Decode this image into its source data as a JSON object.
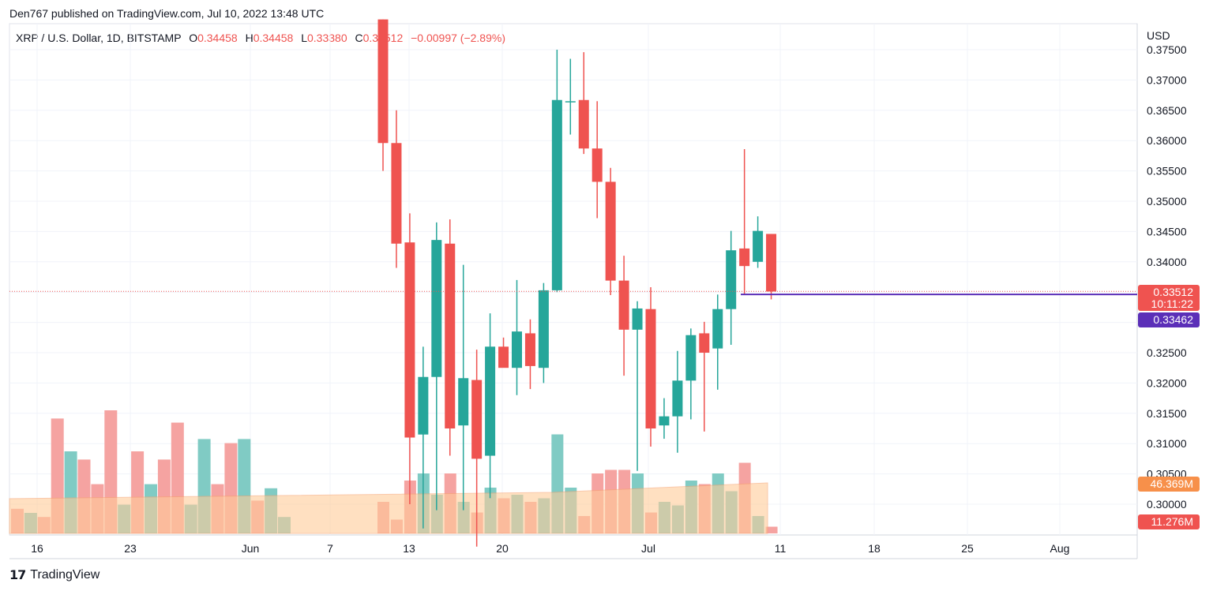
{
  "header": {
    "attribution": "Den767 published on TradingView.com, Jul 10, 2022 13:48 UTC"
  },
  "legend": {
    "symbol": "XRP / U.S. Dollar, 1D, BITSTAMP",
    "o_label": "O",
    "o_value": "0.34458",
    "h_label": "H",
    "h_value": "0.34458",
    "l_label": "L",
    "l_value": "0.33380",
    "c_label": "C",
    "c_value": "0.33512",
    "change": "−0.00997 (−2.89%)"
  },
  "price_axis": {
    "currency": "USD",
    "ticks": [
      "0.37500",
      "0.37000",
      "0.36500",
      "0.36000",
      "0.35500",
      "0.35000",
      "0.34500",
      "0.34000",
      "0.32500",
      "0.32000",
      "0.31500",
      "0.31000",
      "0.30500",
      "0.30000"
    ]
  },
  "badges": {
    "last_price": "0.33512",
    "countdown": "10:11:22",
    "line_price": "0.33462",
    "volume_ma": "46.369M",
    "volume": "11.276M"
  },
  "time_axis": {
    "labels": [
      "16",
      "23",
      "Jun",
      "7",
      "13",
      "20",
      "Jul",
      "11",
      "18",
      "25",
      "Aug"
    ]
  },
  "footer": {
    "logo": "TradingView"
  },
  "colors": {
    "up": "#26a69a",
    "down": "#ef5350",
    "volume_ma_fill": "#ffcc99",
    "line": "#5b2fb8",
    "grid": "#f0f3fa"
  },
  "chart_data": {
    "type": "candlestick",
    "title": "XRP / U.S. Dollar, 1D, BITSTAMP",
    "ylabel": "USD",
    "ylim": [
      0.2975,
      0.378
    ],
    "horizontal_line": 0.33462,
    "last_price": 0.33512,
    "candles": [
      {
        "o": 0.38,
        "h": 0.38,
        "l": 0.355,
        "c": 0.3596
      },
      {
        "o": 0.3596,
        "h": 0.365,
        "l": 0.339,
        "c": 0.343
      },
      {
        "o": 0.3432,
        "h": 0.348,
        "l": 0.3,
        "c": 0.311
      },
      {
        "o": 0.3115,
        "h": 0.326,
        "l": 0.296,
        "c": 0.321
      },
      {
        "o": 0.321,
        "h": 0.3465,
        "l": 0.299,
        "c": 0.3436
      },
      {
        "o": 0.343,
        "h": 0.347,
        "l": 0.308,
        "c": 0.3125
      },
      {
        "o": 0.313,
        "h": 0.3395,
        "l": 0.299,
        "c": 0.3208
      },
      {
        "o": 0.3205,
        "h": 0.3255,
        "l": 0.293,
        "c": 0.3075
      },
      {
        "o": 0.308,
        "h": 0.3315,
        "l": 0.301,
        "c": 0.326
      },
      {
        "o": 0.326,
        "h": 0.3275,
        "l": 0.323,
        "c": 0.3225
      },
      {
        "o": 0.3225,
        "h": 0.337,
        "l": 0.318,
        "c": 0.3285
      },
      {
        "o": 0.3282,
        "h": 0.3305,
        "l": 0.319,
        "c": 0.3228
      },
      {
        "o": 0.3225,
        "h": 0.3365,
        "l": 0.32,
        "c": 0.3353
      },
      {
        "o": 0.3353,
        "h": 0.375,
        "l": 0.335,
        "c": 0.3667
      },
      {
        "o": 0.3665,
        "h": 0.3735,
        "l": 0.361,
        "c": 0.3665
      },
      {
        "o": 0.3667,
        "h": 0.3746,
        "l": 0.3578,
        "c": 0.3587
      },
      {
        "o": 0.3587,
        "h": 0.3665,
        "l": 0.3472,
        "c": 0.3532
      },
      {
        "o": 0.3532,
        "h": 0.3555,
        "l": 0.3345,
        "c": 0.3369
      },
      {
        "o": 0.3369,
        "h": 0.341,
        "l": 0.3212,
        "c": 0.3288
      },
      {
        "o": 0.3288,
        "h": 0.3335,
        "l": 0.3055,
        "c": 0.3323
      },
      {
        "o": 0.3322,
        "h": 0.3358,
        "l": 0.3095,
        "c": 0.3125
      },
      {
        "o": 0.313,
        "h": 0.3175,
        "l": 0.3108,
        "c": 0.3145
      },
      {
        "o": 0.3145,
        "h": 0.3253,
        "l": 0.3085,
        "c": 0.3204
      },
      {
        "o": 0.3204,
        "h": 0.329,
        "l": 0.314,
        "c": 0.3279
      },
      {
        "o": 0.3282,
        "h": 0.3301,
        "l": 0.312,
        "c": 0.325
      },
      {
        "o": 0.3257,
        "h": 0.3346,
        "l": 0.3189,
        "c": 0.3322
      },
      {
        "o": 0.3322,
        "h": 0.3451,
        "l": 0.3263,
        "c": 0.3419
      },
      {
        "o": 0.3422,
        "h": 0.3586,
        "l": 0.3347,
        "c": 0.3393
      },
      {
        "o": 0.34,
        "h": 0.3475,
        "l": 0.339,
        "c": 0.3451
      },
      {
        "o": 0.3446,
        "h": 0.3446,
        "l": 0.3338,
        "c": 0.3351
      }
    ],
    "volume_millions": [
      {
        "v": 6,
        "dir": "down"
      },
      {
        "v": 5,
        "dir": "up"
      },
      {
        "v": 4,
        "dir": "down"
      },
      {
        "v": 28,
        "dir": "down"
      },
      {
        "v": 20,
        "dir": "up"
      },
      {
        "v": 18,
        "dir": "down"
      },
      {
        "v": 12,
        "dir": "down"
      },
      {
        "v": 30,
        "dir": "down"
      },
      {
        "v": 7,
        "dir": "up"
      },
      {
        "v": 20,
        "dir": "down"
      },
      {
        "v": 12,
        "dir": "up"
      },
      {
        "v": 18,
        "dir": "down"
      },
      {
        "v": 27,
        "dir": "down"
      },
      {
        "v": 7,
        "dir": "up"
      },
      {
        "v": 23,
        "dir": "up"
      },
      {
        "v": 12,
        "dir": "down"
      },
      {
        "v": 22,
        "dir": "down"
      },
      {
        "v": 23,
        "dir": "up"
      },
      {
        "v": 8,
        "dir": "down"
      },
      {
        "v": 11,
        "dir": "up"
      },
      {
        "v": 4,
        "dir": "up"
      }
    ],
    "volume_ma_millions": 46.369
  }
}
